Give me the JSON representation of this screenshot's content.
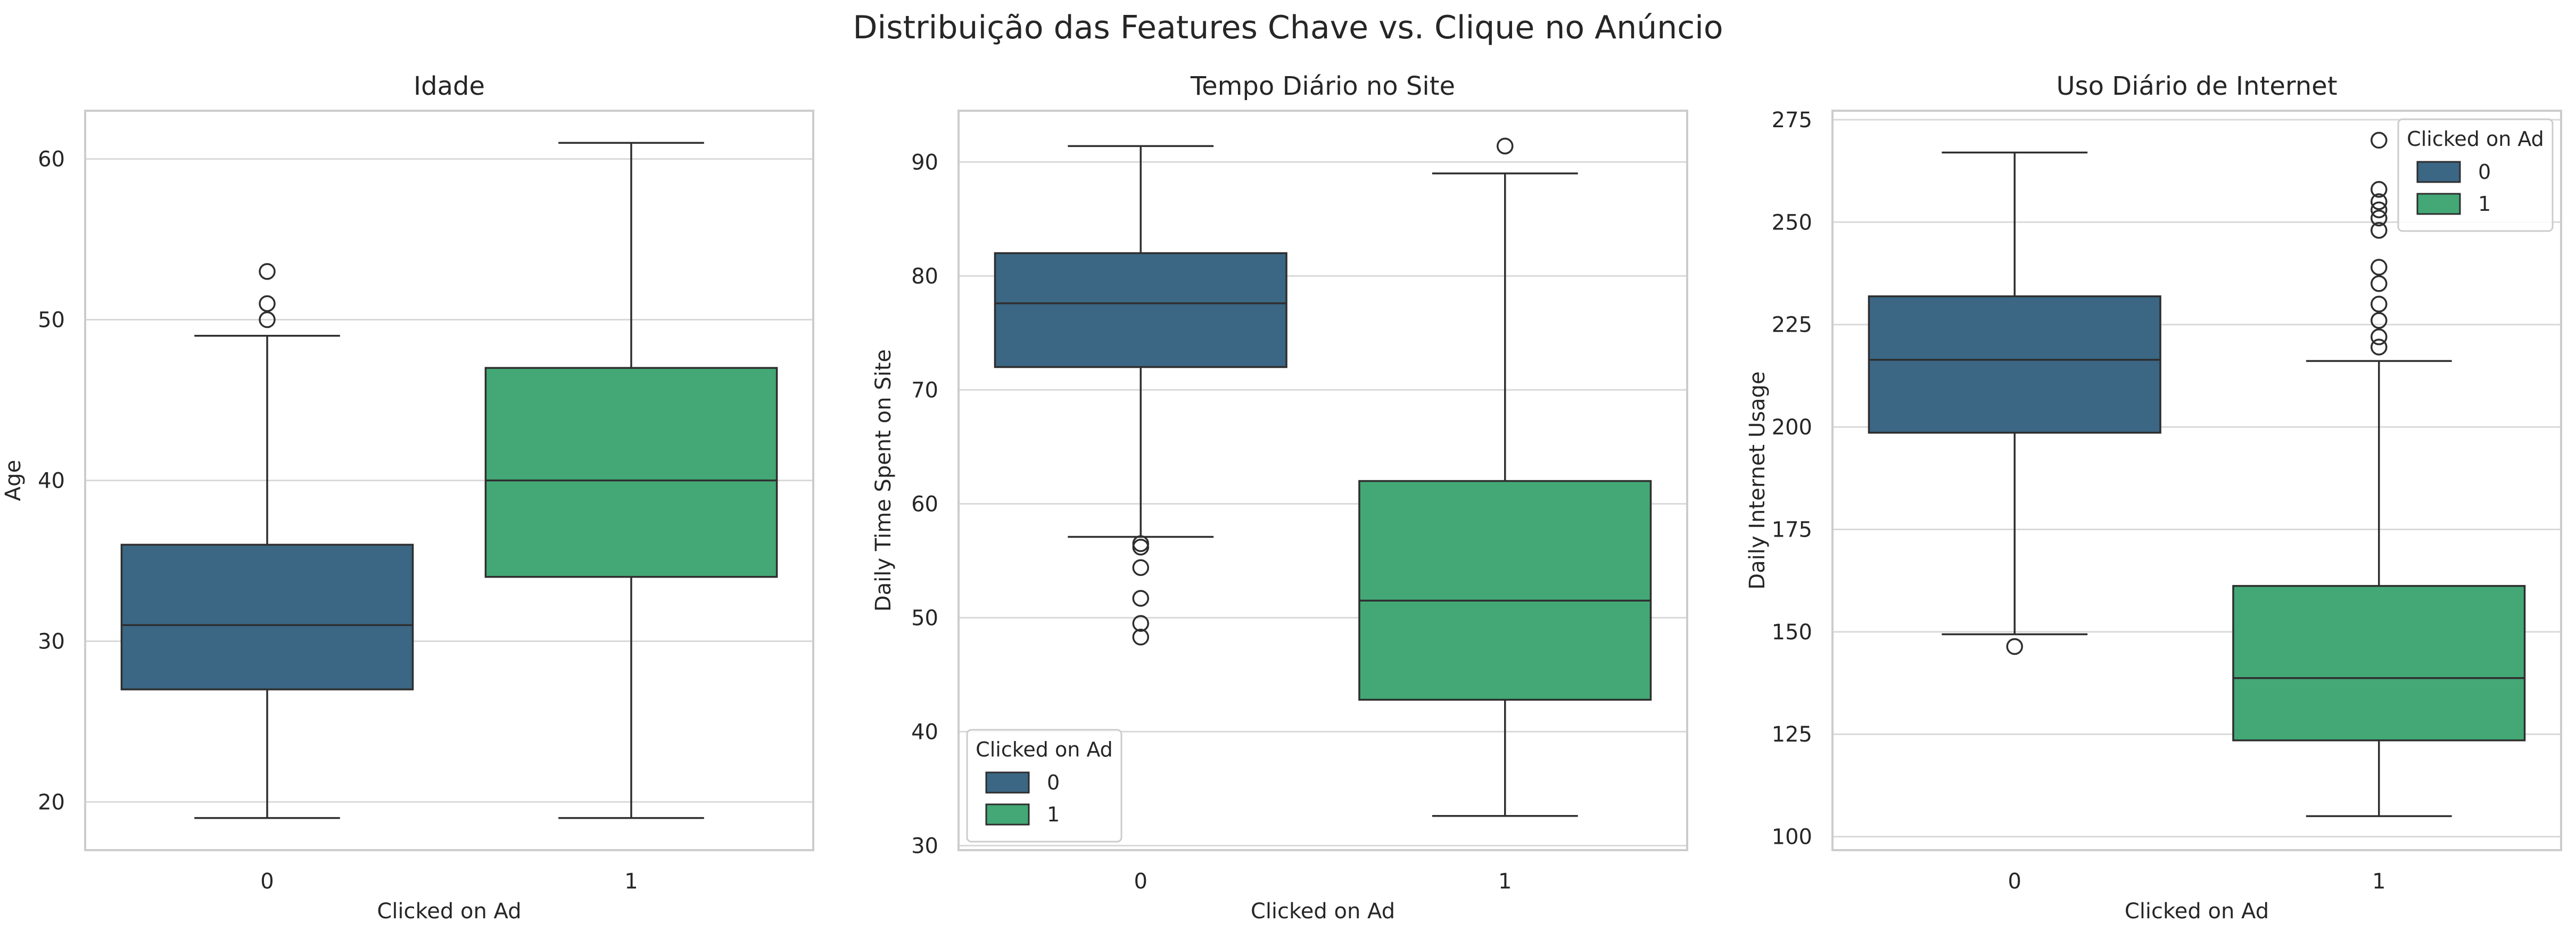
{
  "figure": {
    "suptitle": "Distribuição das Features Chave vs. Clique no Anúncio"
  },
  "chart_data": [
    {
      "type": "boxplot",
      "title": "Idade",
      "xlabel": "Clicked on Ad",
      "ylabel": "Age",
      "categories": [
        "0",
        "1"
      ],
      "ylim": [
        17,
        63
      ],
      "yticks": [
        20,
        30,
        40,
        50,
        60
      ],
      "grid": true,
      "legend": null,
      "boxes": [
        {
          "category": "0",
          "whisker_low": 19,
          "q1": 27,
          "median": 31,
          "q3": 36,
          "whisker_high": 49,
          "outliers": [
            50,
            51,
            53
          ]
        },
        {
          "category": "1",
          "whisker_low": 19,
          "q1": 34,
          "median": 40,
          "q3": 47,
          "whisker_high": 61,
          "outliers": []
        }
      ]
    },
    {
      "type": "boxplot",
      "title": "Tempo Diário no Site",
      "xlabel": "Clicked on Ad",
      "ylabel": "Daily Time Spent on Site",
      "categories": [
        "0",
        "1"
      ],
      "ylim": [
        29.6,
        94.5
      ],
      "yticks": [
        30,
        40,
        50,
        60,
        70,
        80,
        90
      ],
      "grid": true,
      "legend": {
        "title": "Clicked on Ad",
        "entries": [
          "0",
          "1"
        ],
        "placement": "lower-left"
      },
      "boxes": [
        {
          "category": "0",
          "whisker_low": 57.1,
          "q1": 72.0,
          "median": 77.6,
          "q3": 82.0,
          "whisker_high": 91.4,
          "outliers": [
            56.5,
            56.2,
            54.4,
            51.7,
            49.5,
            48.3
          ]
        },
        {
          "category": "1",
          "whisker_low": 32.6,
          "q1": 42.8,
          "median": 51.5,
          "q3": 62.0,
          "whisker_high": 89.0,
          "outliers": [
            91.4
          ]
        }
      ]
    },
    {
      "type": "boxplot",
      "title": "Uso Diário de Internet",
      "xlabel": "Clicked on Ad",
      "ylabel": "Daily Internet Usage",
      "categories": [
        "0",
        "1"
      ],
      "ylim": [
        96.7,
        277.2
      ],
      "yticks": [
        100,
        125,
        150,
        175,
        200,
        225,
        250,
        275
      ],
      "grid": true,
      "legend": {
        "title": "Clicked on Ad",
        "entries": [
          "0",
          "1"
        ],
        "placement": "upper-right"
      },
      "boxes": [
        {
          "category": "0",
          "whisker_low": 149.4,
          "q1": 198.6,
          "median": 216.4,
          "q3": 231.9,
          "whisker_high": 267.0,
          "outliers": [
            146.4
          ]
        },
        {
          "category": "1",
          "whisker_low": 105.0,
          "q1": 123.5,
          "median": 138.7,
          "q3": 161.2,
          "whisker_high": 216.1,
          "outliers": [
            270,
            258,
            255,
            253,
            251,
            248,
            239,
            235,
            230,
            226,
            222,
            219.5
          ]
        }
      ]
    }
  ],
  "colors": {
    "box_0": "#3b6684",
    "box_1": "#43a875",
    "line": "#2e2e2e",
    "grid": "#d9d9d9",
    "spine": "#cccccc",
    "text": "#262626"
  }
}
